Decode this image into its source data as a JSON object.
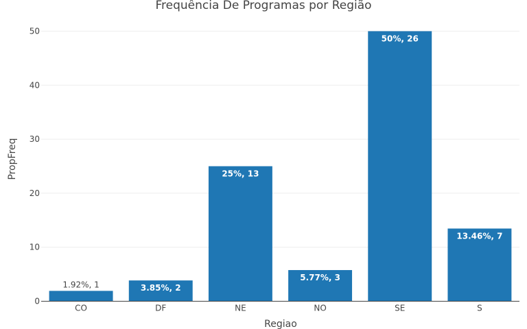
{
  "chart_data": {
    "type": "bar",
    "title": "Frequência De Programas por Região",
    "xlabel": "Regiao",
    "ylabel": "PropFreq",
    "categories": [
      "CO",
      "DF",
      "NE",
      "NO",
      "SE",
      "S"
    ],
    "values": [
      1.92,
      3.85,
      25,
      5.77,
      50,
      13.46
    ],
    "data_labels": [
      "1.92%, 1",
      "3.85%, 2",
      "25%, 13",
      "5.77%, 3",
      "50%, 26",
      "13.46%, 7"
    ],
    "ylim": [
      0,
      50
    ],
    "yticks": [
      "0",
      "10",
      "20",
      "30",
      "40",
      "50"
    ],
    "grid": true,
    "bar_color": "#1f77b4"
  }
}
